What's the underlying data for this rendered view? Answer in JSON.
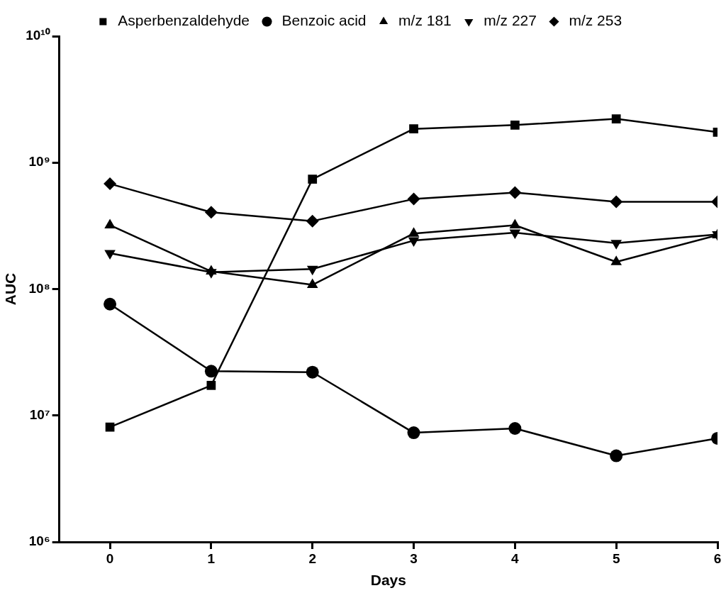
{
  "chart_data": {
    "type": "line",
    "xlabel": "Days",
    "ylabel": "AUC",
    "x": [
      0,
      1,
      2,
      3,
      4,
      5,
      6
    ],
    "log": "y",
    "grid": false,
    "legend": "top",
    "line_style": "solid",
    "xlim": [
      -0.5,
      6
    ],
    "xticks": [
      0,
      1,
      2,
      3,
      4,
      5,
      6
    ],
    "ylim": [
      1000000,
      10000000000
    ],
    "yticks": [
      {
        "value": 1000000,
        "label": "10⁶"
      },
      {
        "value": 10000000,
        "label": "10⁷"
      },
      {
        "value": 100000000,
        "label": "10⁸"
      },
      {
        "value": 1000000000,
        "label": "10⁹"
      },
      {
        "value": 10000000000,
        "label": "10¹⁰"
      }
    ],
    "series": [
      {
        "name": "Asperbenzaldehyde",
        "color": "#000000",
        "marker": "square",
        "values": [
          8100000,
          17300000,
          740000000,
          1850000000,
          1980000000,
          2220000000,
          1740000000
        ]
      },
      {
        "name": "Benzoic acid",
        "color": "#000000",
        "marker": "circle",
        "values": [
          76000000,
          22400000,
          22000000,
          7300000,
          7900000,
          4800000,
          6600000
        ]
      },
      {
        "name": "m/z 181",
        "color": "#000000",
        "marker": "triangle",
        "values": [
          320000000,
          138000000,
          108000000,
          275000000,
          320000000,
          164000000,
          267000000
        ]
      },
      {
        "name": "m/z 227",
        "color": "#000000",
        "marker": "triangle-down",
        "values": [
          192000000,
          136000000,
          144000000,
          242000000,
          279000000,
          231000000,
          270000000
        ]
      },
      {
        "name": "m/z 253",
        "color": "#000000",
        "marker": "diamond",
        "values": [
          680000000,
          405000000,
          345000000,
          515000000,
          580000000,
          490000000,
          490000000
        ]
      }
    ]
  }
}
